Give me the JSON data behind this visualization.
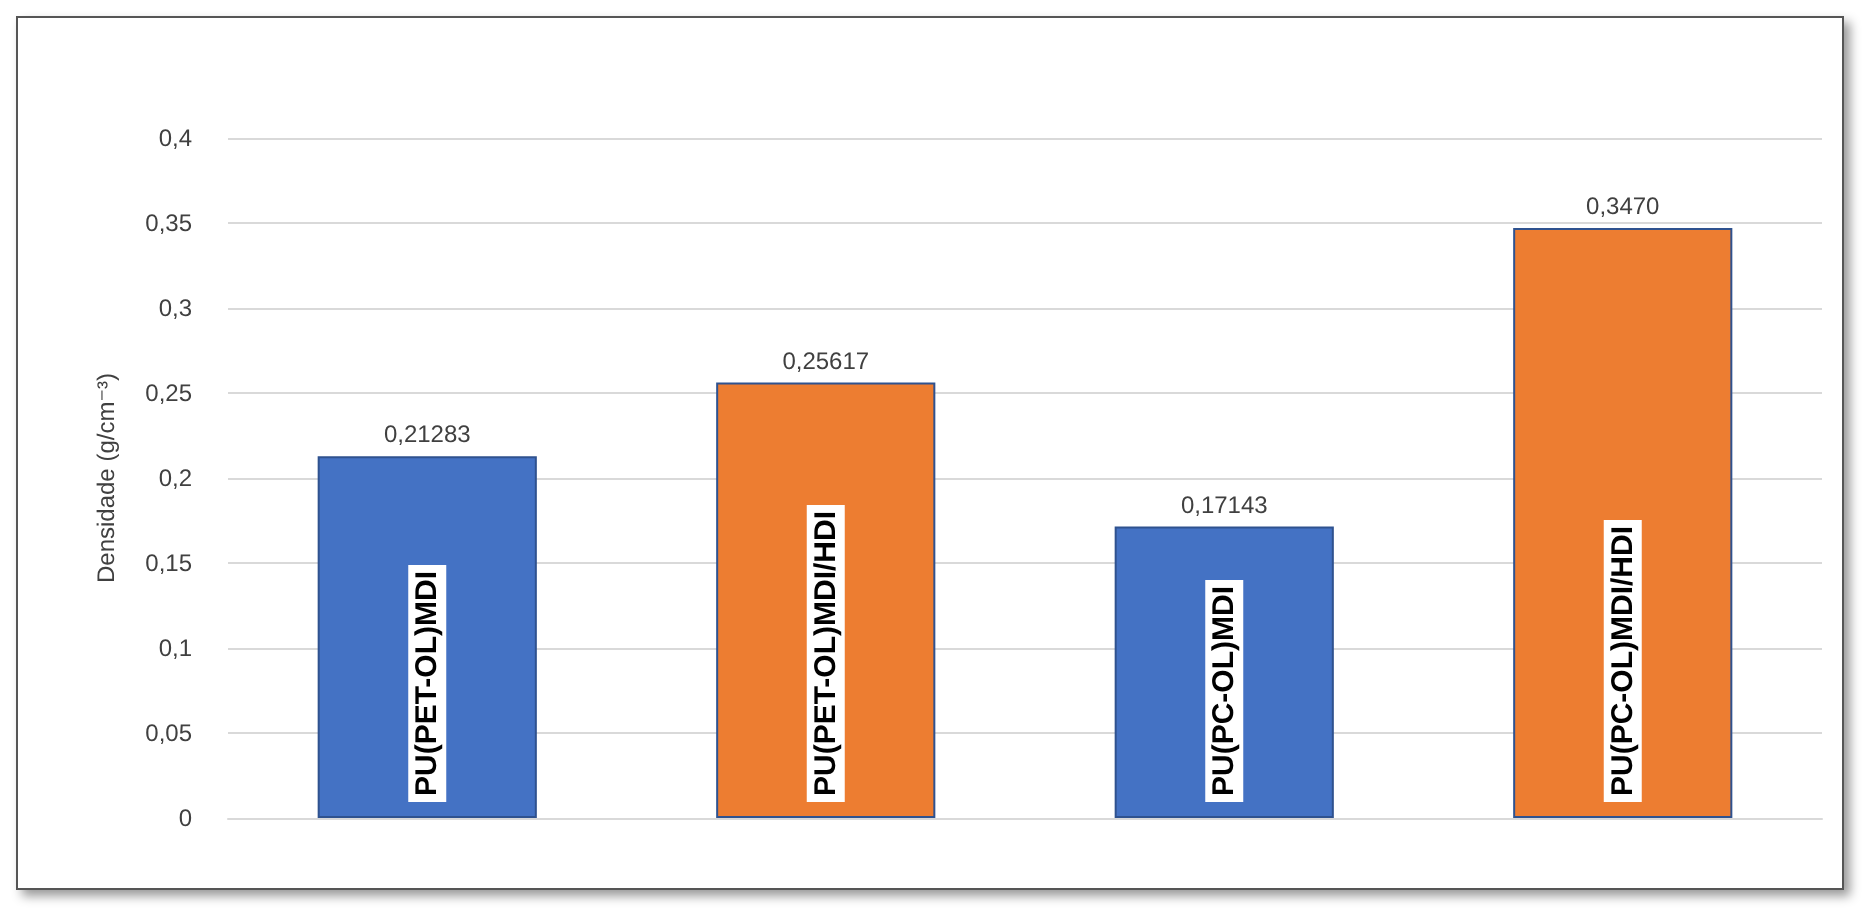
{
  "chart_data": {
    "type": "bar",
    "ylabel": "Densidade (g/cm⁻³)",
    "categories": [
      "PU(PET-OL)MDI",
      "PU(PET-OL)MDI/HDI",
      "PU(PC-OL)MDI",
      "PU(PC-OL)MDI/HDI"
    ],
    "values": [
      0.21283,
      0.25617,
      0.17143,
      0.347
    ],
    "colors": [
      "#4472c4",
      "#ed7d31",
      "#4472c4",
      "#ed7d31"
    ],
    "value_labels": [
      "0,21283",
      "0,25617",
      "0,17143",
      "0,3470"
    ],
    "ylim": [
      0,
      0.4
    ],
    "yticks": [
      0,
      {
        "value": 0.05,
        "label": "0,05"
      },
      {
        "value": 0.1,
        "label": "0,1"
      },
      {
        "value": 0.15,
        "label": "0,15"
      },
      {
        "value": 0.2,
        "label": "0,2"
      },
      {
        "value": 0.25,
        "label": "0,25"
      },
      {
        "value": 0.3,
        "label": "0,3"
      },
      {
        "value": 0.35,
        "label": "0,35"
      },
      {
        "value": 0.4,
        "label": "0,4"
      }
    ],
    "grid": "y"
  }
}
